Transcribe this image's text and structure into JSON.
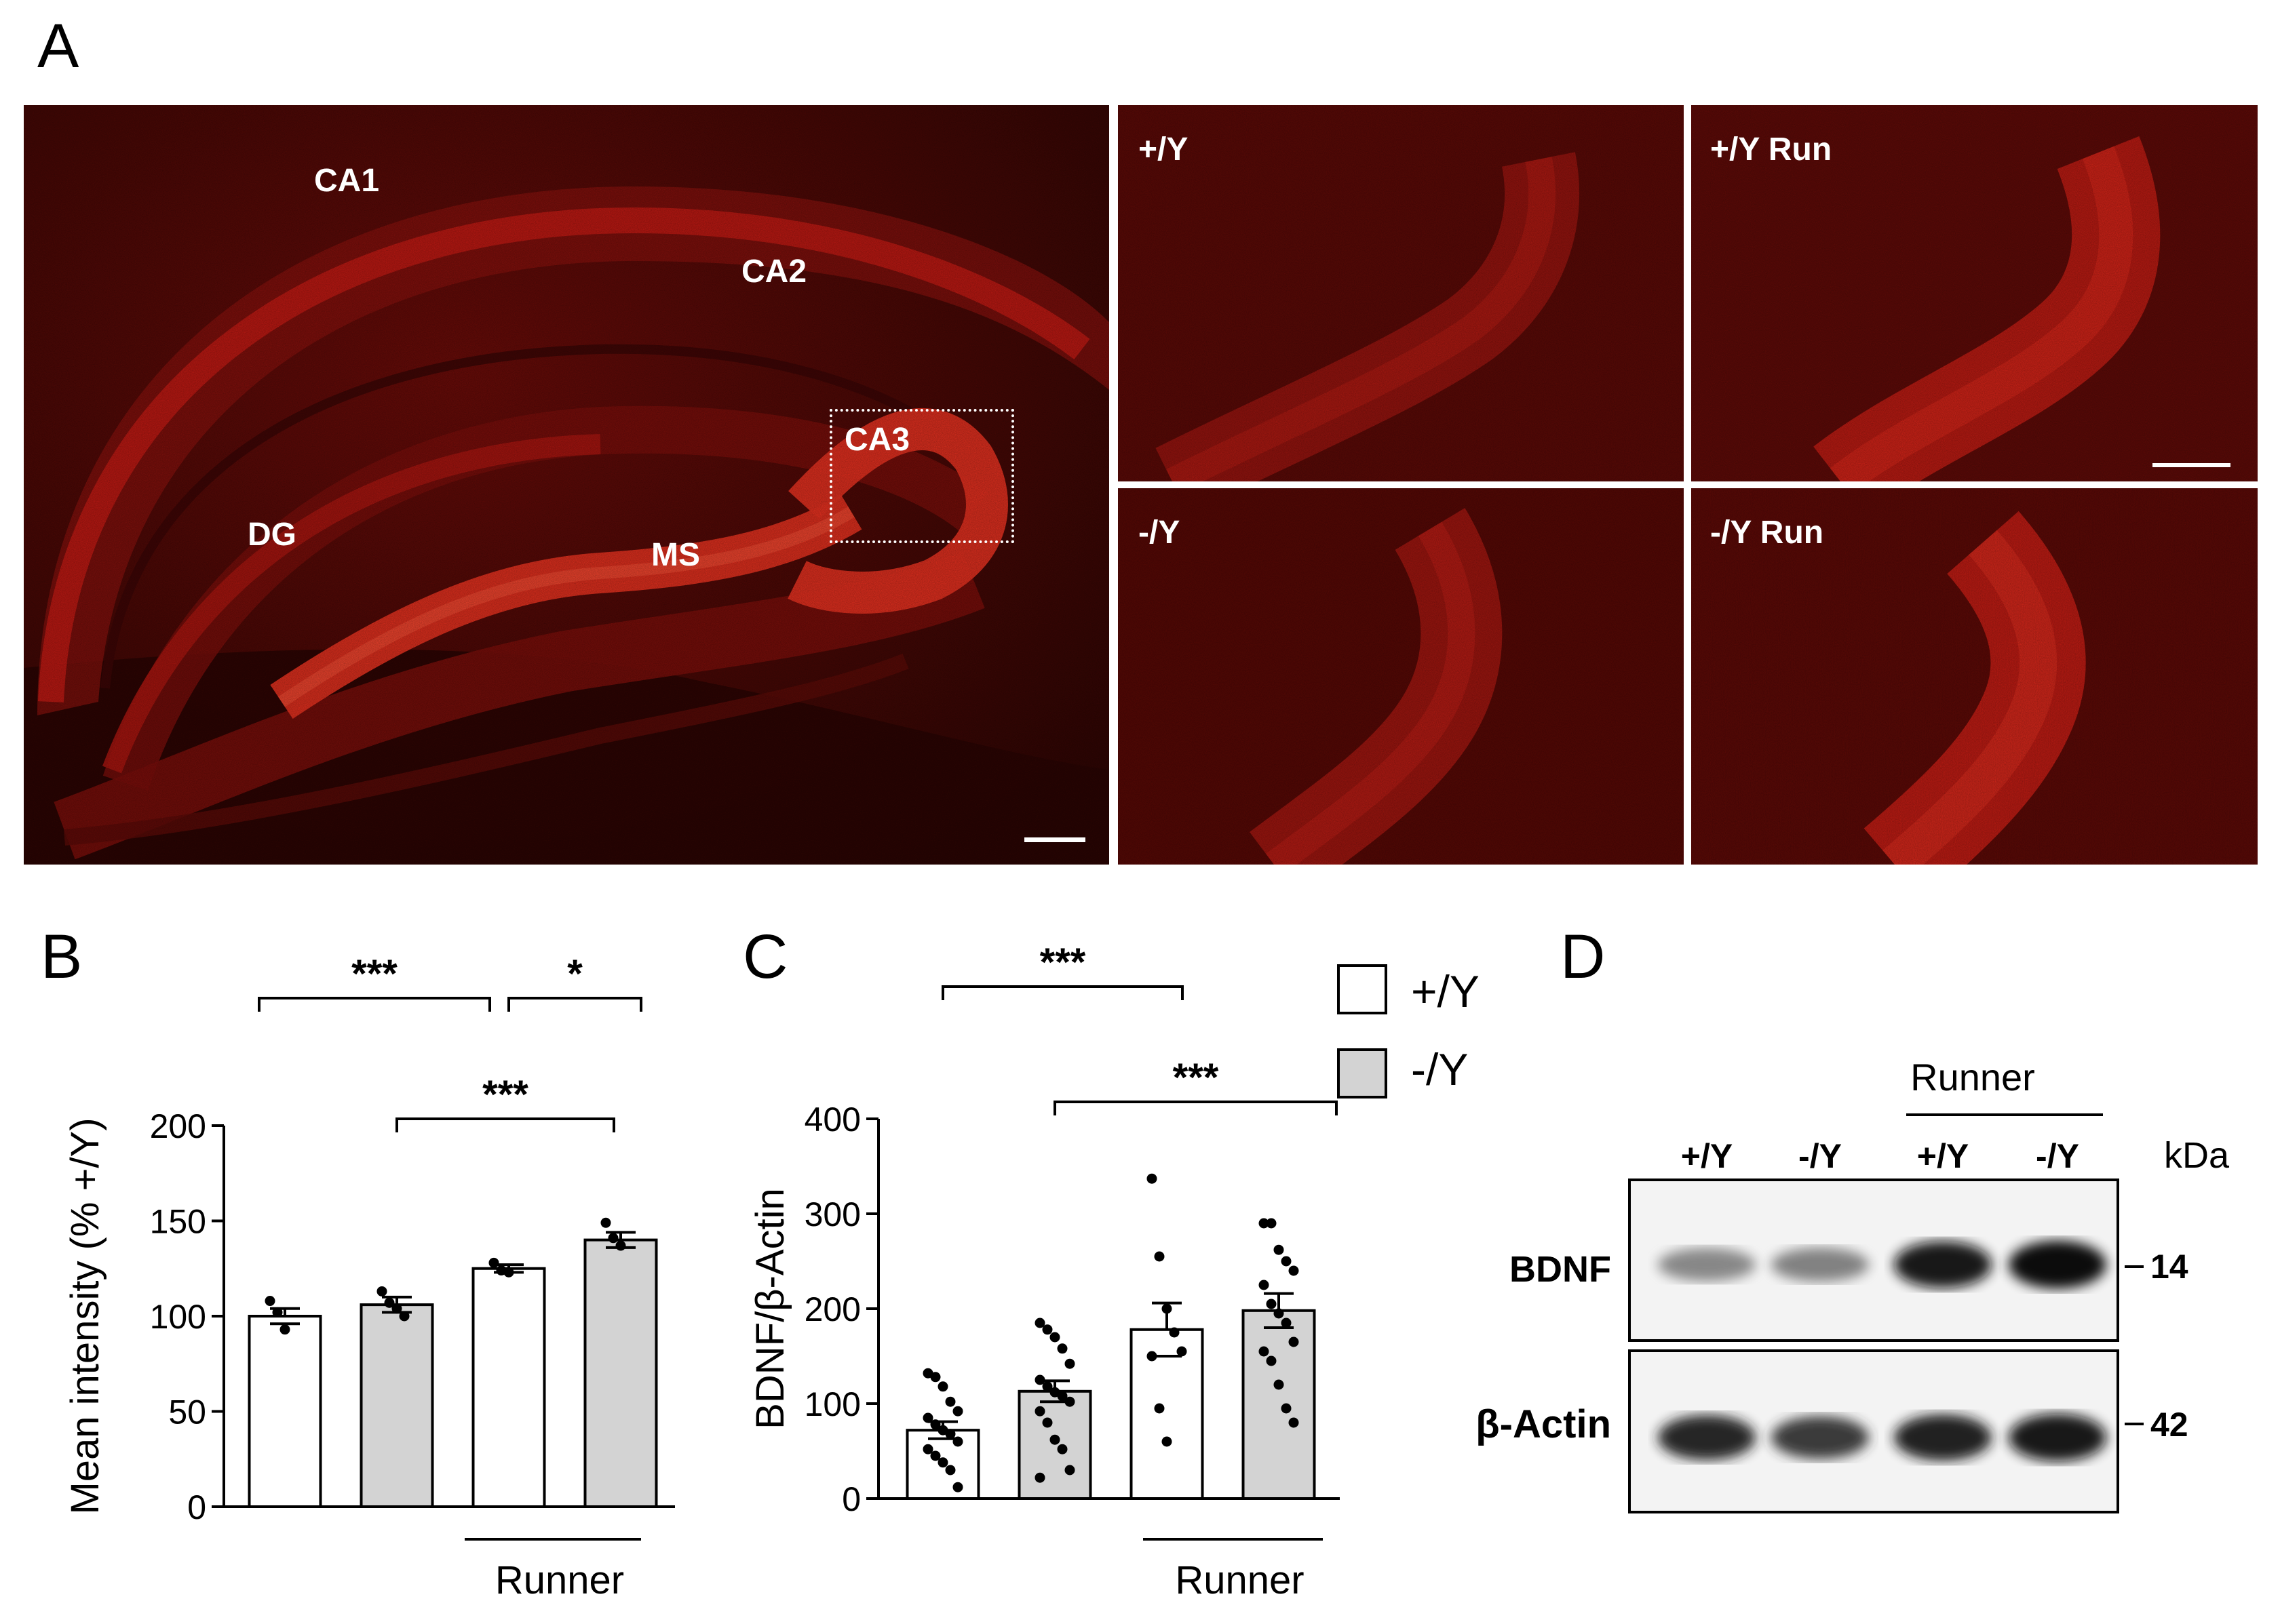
{
  "panels": {
    "a": "A",
    "b": "B",
    "c": "C",
    "d": "D"
  },
  "micrograph": {
    "overview_labels": {
      "ca1": "CA1",
      "ca2": "CA2",
      "ca3": "CA3",
      "dg": "DG",
      "ms": "MS"
    },
    "tiles": [
      {
        "label": "+/Y"
      },
      {
        "label": "+/Y Run"
      },
      {
        "label": "-/Y"
      },
      {
        "label": "-/Y Run"
      }
    ],
    "stain_color": "#d81414"
  },
  "legend": [
    {
      "label": "+/Y",
      "fill": "#ffffff"
    },
    {
      "label": "-/Y",
      "fill": "#d3d3d3"
    }
  ],
  "chart_data": [
    {
      "type": "bar",
      "panel": "B",
      "ylabel": "Mean intensity (% +/Y)",
      "ylim": [
        0,
        200
      ],
      "yticks": [
        0,
        50,
        100,
        150,
        200
      ],
      "group_label": "Runner",
      "bars": [
        {
          "group": "+/Y",
          "runner": false,
          "mean": 100,
          "sem": 4,
          "fill": "#ffffff",
          "points": [
            108,
            102,
            93
          ]
        },
        {
          "group": "-/Y",
          "runner": false,
          "mean": 106,
          "sem": 4,
          "fill": "#d3d3d3",
          "points": [
            113,
            107,
            104,
            100
          ]
        },
        {
          "group": "+/Y",
          "runner": true,
          "mean": 125,
          "sem": 2,
          "fill": "#ffffff",
          "points": [
            128,
            124,
            123
          ]
        },
        {
          "group": "-/Y",
          "runner": true,
          "mean": 140,
          "sem": 4,
          "fill": "#d3d3d3",
          "points": [
            149,
            141,
            137
          ]
        }
      ],
      "significance": [
        {
          "from": 0,
          "to": 2,
          "label": "***"
        },
        {
          "from": 2,
          "to": 3,
          "label": "*"
        },
        {
          "from": 1,
          "to": 3,
          "label": "***"
        }
      ]
    },
    {
      "type": "bar",
      "panel": "C",
      "ylabel": "BDNF/β-Actin",
      "ylim": [
        0,
        400
      ],
      "yticks": [
        0,
        100,
        200,
        300,
        400
      ],
      "group_label": "Runner",
      "bars": [
        {
          "group": "+/Y",
          "runner": false,
          "mean": 72,
          "sem": 9,
          "fill": "#ffffff",
          "points": [
            132,
            128,
            118,
            102,
            92,
            85,
            78,
            72,
            68,
            60,
            52,
            45,
            38,
            30,
            12
          ]
        },
        {
          "group": "-/Y",
          "runner": false,
          "mean": 113,
          "sem": 11,
          "fill": "#d3d3d3",
          "points": [
            185,
            178,
            170,
            158,
            142,
            125,
            118,
            112,
            108,
            102,
            92,
            80,
            62,
            52,
            30,
            22
          ]
        },
        {
          "group": "+/Y",
          "runner": true,
          "mean": 178,
          "sem": 28,
          "fill": "#ffffff",
          "points": [
            337,
            255,
            200,
            175,
            155,
            150,
            95,
            60
          ]
        },
        {
          "group": "-/Y",
          "runner": true,
          "mean": 198,
          "sem": 18,
          "fill": "#d3d3d3",
          "points": [
            290,
            290,
            262,
            250,
            240,
            225,
            205,
            195,
            185,
            165,
            155,
            145,
            120,
            95,
            80
          ]
        }
      ],
      "significance": [
        {
          "from": 0,
          "to": 2,
          "label": "***"
        },
        {
          "from": 1,
          "to": 3,
          "label": "***"
        }
      ]
    }
  ],
  "blot": {
    "header": "Runner",
    "lanes": [
      "+/Y",
      "-/Y",
      "+/Y",
      "-/Y"
    ],
    "unit": "kDa",
    "rows": [
      {
        "protein": "BDNF",
        "marker": "14",
        "intensity": [
          0.35,
          0.38,
          0.92,
          0.97
        ]
      },
      {
        "protein": "β-Actin",
        "marker": "42",
        "intensity": [
          0.85,
          0.75,
          0.9,
          0.95
        ]
      }
    ]
  }
}
